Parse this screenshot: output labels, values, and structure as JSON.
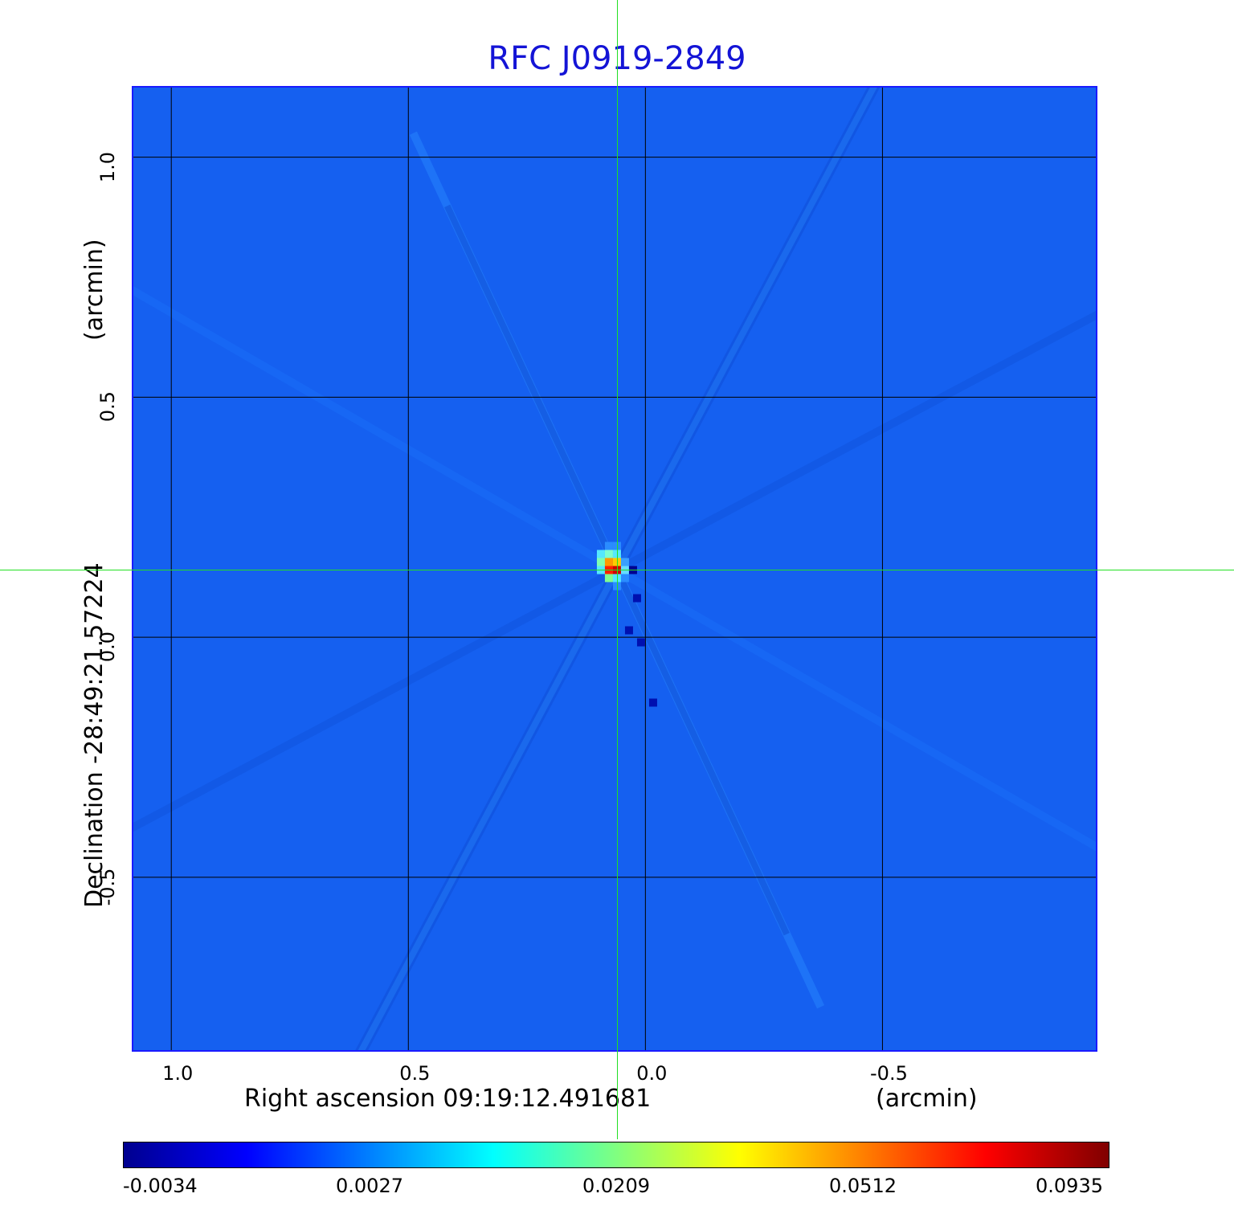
{
  "chart_data": {
    "type": "heatmap",
    "title": "RFC J0919-2849",
    "xlabel": "Right ascension  09:19:12.491681",
    "xunit": "(arcmin)",
    "ylabel": "Declination  -28:49:21.57224",
    "yunit": "(arcmin)",
    "xlim": [
      1.08,
      -0.95
    ],
    "ylim": [
      -0.86,
      1.145
    ],
    "xticks": [
      {
        "value": 1.0,
        "label": "1.0"
      },
      {
        "value": 0.5,
        "label": "0.5"
      },
      {
        "value": 0.0,
        "label": "0.0"
      },
      {
        "value": -0.5,
        "label": "-0.5"
      }
    ],
    "yticks": [
      {
        "value": 1.0,
        "label": "1.0"
      },
      {
        "value": 0.5,
        "label": "0.5"
      },
      {
        "value": 0.0,
        "label": "0.0"
      },
      {
        "value": -0.5,
        "label": "-0.5"
      }
    ],
    "grid": true,
    "peak": {
      "x": 0.06,
      "y": 0.14,
      "value": 0.0935
    },
    "crosshair": {
      "x": 0.06,
      "y": 0.14
    },
    "colorbar": {
      "labels": [
        "-0.0034",
        "0.0027",
        "0.0209",
        "0.0512",
        "0.0935"
      ],
      "colors": [
        "#00008f",
        "#0000ff",
        "#0080ff",
        "#00ffff",
        "#80ff80",
        "#ffff00",
        "#ff8000",
        "#ff0000",
        "#800000"
      ]
    },
    "background_color": "#1560f0"
  }
}
